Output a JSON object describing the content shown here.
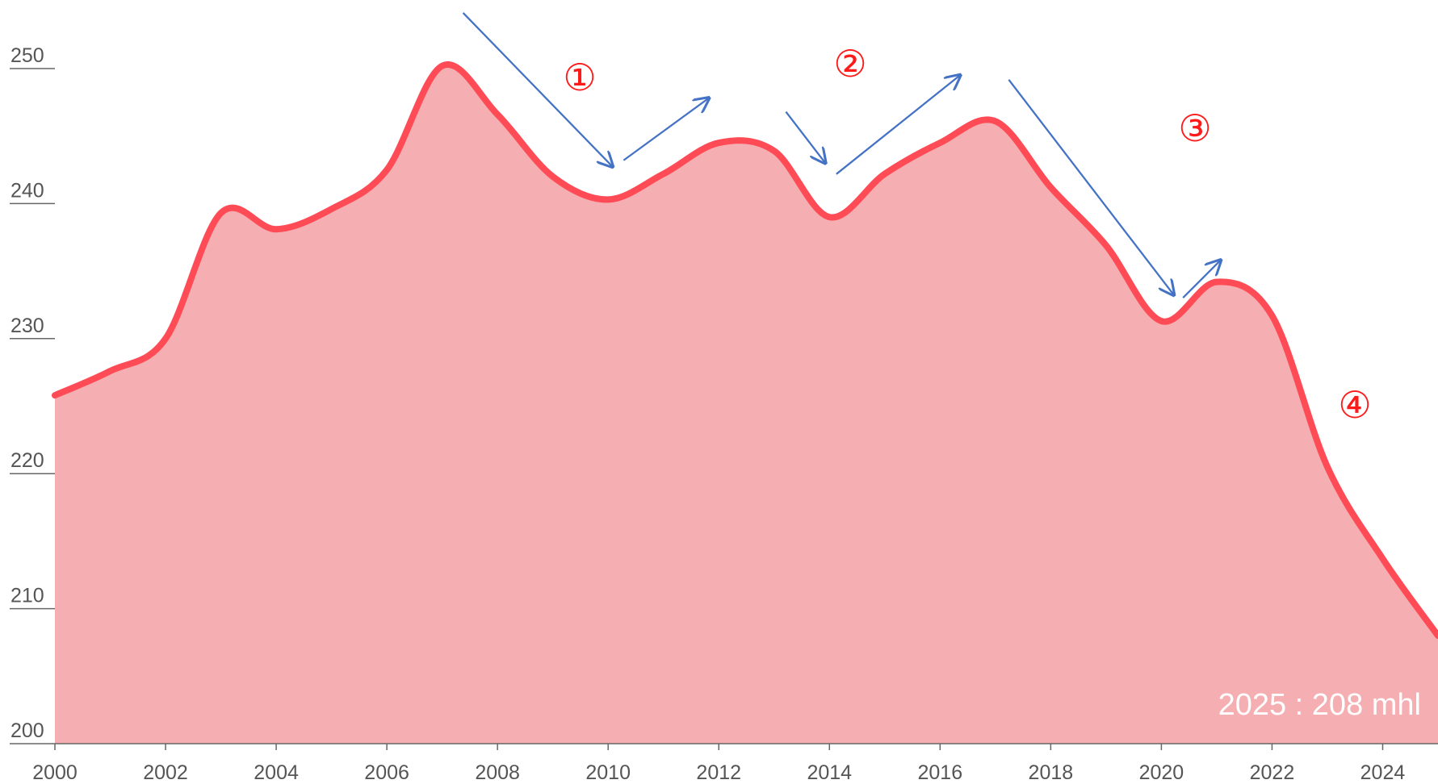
{
  "chart_data": {
    "type": "area",
    "x": [
      2000,
      2001,
      2002,
      2003,
      2004,
      2005,
      2006,
      2007,
      2008,
      2009,
      2010,
      2011,
      2012,
      2013,
      2014,
      2015,
      2016,
      2017,
      2018,
      2019,
      2020,
      2021,
      2022,
      2023,
      2024,
      2025
    ],
    "values": [
      225.8,
      227.6,
      230,
      239.3,
      238.1,
      239.6,
      242.5,
      250.2,
      246.6,
      242,
      240.3,
      242.2,
      244.5,
      243.9,
      239,
      242.2,
      244.5,
      246.1,
      241.2,
      236.9,
      231.3,
      234.2,
      231.7,
      220.5,
      213.7,
      208
    ],
    "color": "#ff4b55",
    "fill": "#f5aeb1",
    "xlim": [
      2000,
      2025
    ],
    "xticks": [
      2000,
      2002,
      2004,
      2006,
      2008,
      2010,
      2012,
      2014,
      2016,
      2018,
      2020,
      2022,
      2024
    ],
    "ylim": [
      200,
      250
    ],
    "yticks": [
      200,
      210,
      220,
      230,
      240,
      250
    ],
    "grid": false,
    "annotations": [
      "①",
      "②",
      "③",
      "④",
      "2025 : 208 mhl"
    ]
  }
}
